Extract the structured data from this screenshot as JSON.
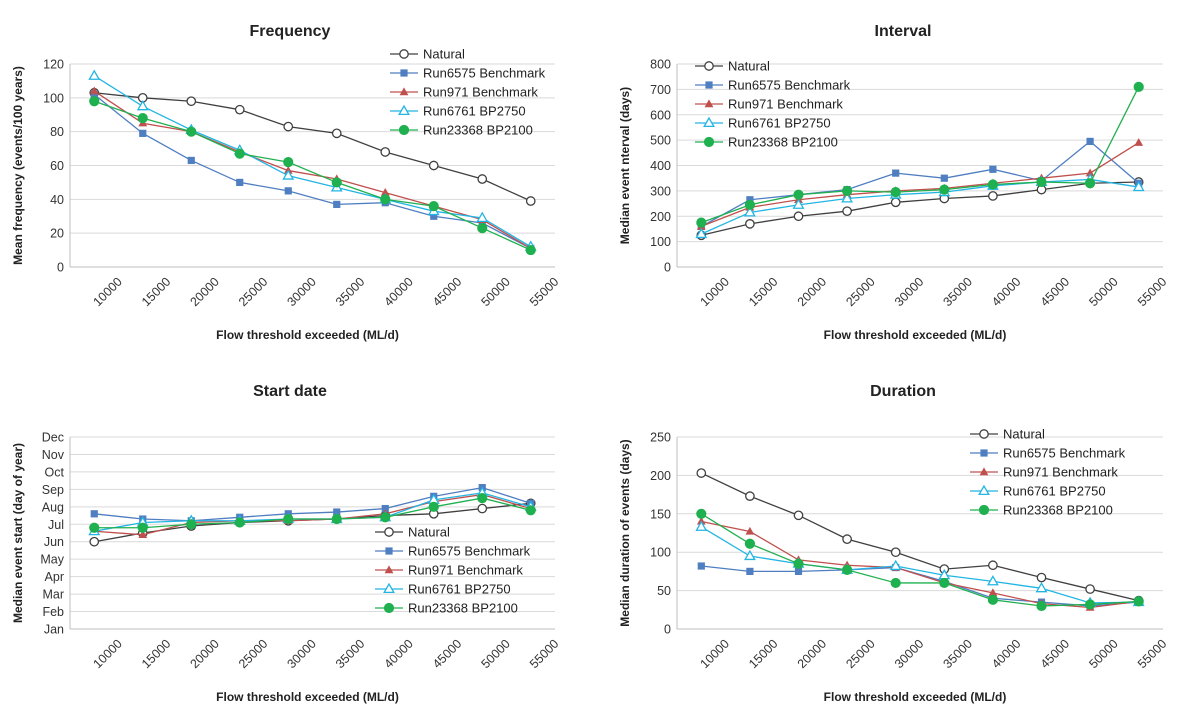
{
  "chart_data": [
    {
      "type": "line",
      "title": "Frequency",
      "xlabel": "Flow threshold exceeded (ML/d)",
      "ylabel": "Mean frequency (events/100 years)",
      "x": [
        10000,
        15000,
        20000,
        25000,
        30000,
        35000,
        40000,
        45000,
        50000,
        55000
      ],
      "ylim": [
        0,
        120
      ],
      "yticks": [
        0,
        20,
        40,
        60,
        80,
        100,
        120
      ],
      "legend": "top-right",
      "series": [
        {
          "name": "Natural",
          "values": [
            103,
            100,
            98,
            93,
            83,
            79,
            68,
            60,
            52,
            39
          ]
        },
        {
          "name": "Run6575 Benchmark",
          "values": [
            102,
            79,
            63,
            50,
            45,
            37,
            38,
            30,
            26,
            11
          ]
        },
        {
          "name": "Run971 Benchmark",
          "values": [
            104,
            85,
            80,
            68,
            57,
            52,
            44,
            36,
            28,
            11
          ]
        },
        {
          "name": "Run6761 BP2750",
          "values": [
            113,
            95,
            81,
            69,
            54,
            47,
            40,
            33,
            29,
            12
          ]
        },
        {
          "name": "Run23368 BP2100",
          "values": [
            98,
            88,
            80,
            67,
            62,
            50,
            40,
            36,
            23,
            10
          ]
        }
      ]
    },
    {
      "type": "line",
      "title": "Interval",
      "xlabel": "Flow threshold exceeded (ML/d)",
      "ylabel": "Median event nterval (days)",
      "x": [
        10000,
        15000,
        20000,
        25000,
        30000,
        35000,
        40000,
        45000,
        50000,
        55000
      ],
      "ylim": [
        0,
        800
      ],
      "yticks": [
        0,
        100,
        200,
        300,
        400,
        500,
        600,
        700,
        800
      ],
      "legend": "top-left",
      "series": [
        {
          "name": "Natural",
          "values": [
            125,
            170,
            200,
            220,
            255,
            270,
            280,
            305,
            330,
            335
          ]
        },
        {
          "name": "Run6575 Benchmark",
          "values": [
            160,
            265,
            285,
            305,
            370,
            350,
            385,
            340,
            495,
            330
          ]
        },
        {
          "name": "Run971 Benchmark",
          "values": [
            160,
            235,
            265,
            285,
            300,
            310,
            330,
            350,
            370,
            490
          ]
        },
        {
          "name": "Run6761 BP2750",
          "values": [
            130,
            215,
            245,
            270,
            285,
            295,
            320,
            335,
            345,
            315
          ]
        },
        {
          "name": "Run23368 BP2100",
          "values": [
            175,
            245,
            285,
            300,
            295,
            305,
            325,
            335,
            330,
            710
          ]
        }
      ]
    },
    {
      "type": "line",
      "title": "Start date",
      "xlabel": "Flow threshold exceeded (ML/d)",
      "ylabel": "Median event start (day of year)",
      "x": [
        10000,
        15000,
        20000,
        25000,
        30000,
        35000,
        40000,
        45000,
        50000,
        55000
      ],
      "ylim": [
        1,
        12
      ],
      "yticks": [
        "Jan",
        "Feb",
        "Mar",
        "Apr",
        "May",
        "Jun",
        "Jul",
        "Aug",
        "Sep",
        "Oct",
        "Nov",
        "Dec"
      ],
      "legend": "bottom-right",
      "series": [
        {
          "name": "Natural",
          "values": [
            6.0,
            6.5,
            6.9,
            7.1,
            7.2,
            7.3,
            7.5,
            7.6,
            7.9,
            8.2
          ]
        },
        {
          "name": "Run6575 Benchmark",
          "values": [
            7.6,
            7.3,
            7.2,
            7.4,
            7.6,
            7.7,
            7.9,
            8.6,
            9.1,
            8.2
          ]
        },
        {
          "name": "Run971 Benchmark",
          "values": [
            6.6,
            6.4,
            7.1,
            7.2,
            7.2,
            7.3,
            7.6,
            8.3,
            8.7,
            7.9
          ]
        },
        {
          "name": "Run6761 BP2750",
          "values": [
            6.6,
            7.1,
            7.2,
            7.2,
            7.3,
            7.3,
            7.4,
            8.4,
            8.8,
            8.0
          ]
        },
        {
          "name": "Run23368 BP2100",
          "values": [
            6.8,
            6.8,
            7.0,
            7.1,
            7.3,
            7.3,
            7.4,
            8.0,
            8.5,
            7.8
          ]
        }
      ]
    },
    {
      "type": "line",
      "title": "Duration",
      "xlabel": "Flow threshold exceeded (ML/d)",
      "ylabel": "Median duration of events (days)",
      "x": [
        10000,
        15000,
        20000,
        25000,
        30000,
        35000,
        40000,
        45000,
        50000,
        55000
      ],
      "ylim": [
        0,
        250
      ],
      "yticks": [
        0,
        50,
        100,
        150,
        200,
        250
      ],
      "legend": "top-right",
      "series": [
        {
          "name": "Natural",
          "values": [
            203,
            173,
            148,
            117,
            100,
            78,
            83,
            67,
            52,
            37
          ]
        },
        {
          "name": "Run6575 Benchmark",
          "values": [
            82,
            75,
            75,
            77,
            80,
            62,
            40,
            35,
            30,
            35
          ]
        },
        {
          "name": "Run971 Benchmark",
          "values": [
            140,
            127,
            90,
            83,
            80,
            60,
            47,
            33,
            28,
            36
          ]
        },
        {
          "name": "Run6761 BP2750",
          "values": [
            133,
            95,
            85,
            77,
            82,
            70,
            62,
            53,
            34,
            35
          ]
        },
        {
          "name": "Run23368 BP2100",
          "values": [
            150,
            111,
            85,
            77,
            60,
            60,
            38,
            30,
            32,
            36
          ]
        }
      ]
    }
  ],
  "colors": {
    "Natural": "#404040",
    "Run6575 Benchmark": "#4f7ec1",
    "Run971 Benchmark": "#c0504d",
    "Run6761 BP2750": "#22b5e3",
    "Run23368 BP2100": "#1fb04f"
  },
  "markers": {
    "Natural": "circle-open",
    "Run6575 Benchmark": "square",
    "Run971 Benchmark": "triangle",
    "Run6761 BP2750": "triangle-open",
    "Run23368 BP2100": "circle"
  }
}
